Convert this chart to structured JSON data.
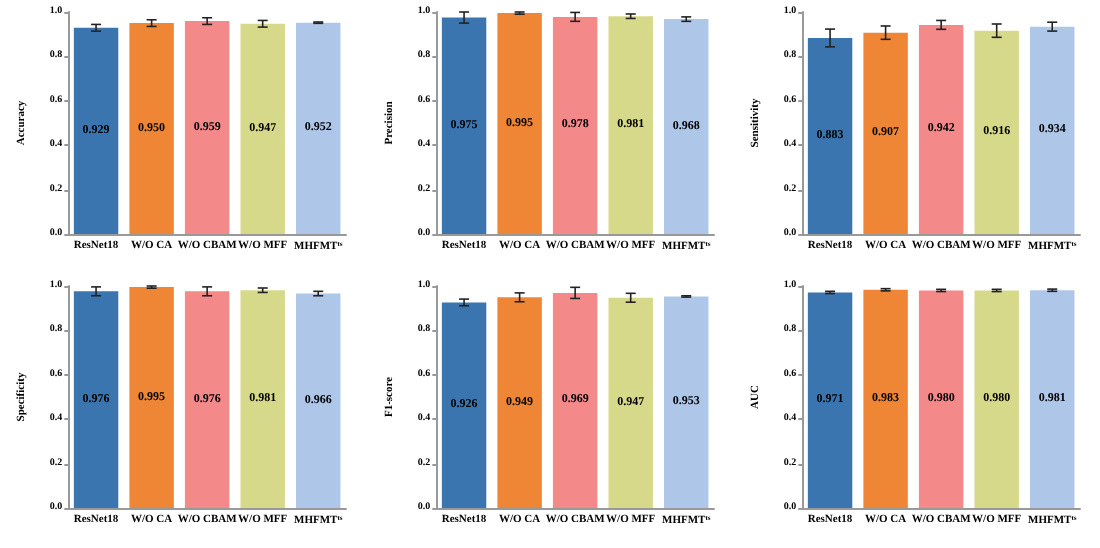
{
  "chart_data": [
    {
      "type": "bar",
      "ylabel": "Accuracy",
      "categories": [
        "ResNet18",
        "W/O CA",
        "W/O CBAM",
        "W/O MFF",
        "MHFMT$^{ts}$"
      ],
      "values": [
        0.929,
        0.95,
        0.959,
        0.947,
        0.952
      ],
      "errors": [
        0.015,
        0.015,
        0.015,
        0.015,
        0.003
      ],
      "colors": [
        "#3a75af",
        "#ef8636",
        "#f4898a",
        "#d6d88a",
        "#aec7e8"
      ],
      "ylim": [
        0,
        1
      ],
      "yticks": [
        {
          "value": 0,
          "label": "0.0"
        },
        {
          "value": 0.2,
          "label": "0.2"
        },
        {
          "value": 0.4,
          "label": "0.4"
        },
        {
          "value": 0.6,
          "label": "0.6"
        },
        {
          "value": 0.8,
          "label": "0.8"
        },
        {
          "value": 1,
          "label": "1.0"
        }
      ],
      "value_labels": [
        "0.929",
        "0.950",
        "0.959",
        "0.947",
        "0.952"
      ]
    },
    {
      "type": "bar",
      "ylabel": "Precision",
      "categories": [
        "ResNet18",
        "W/O CA",
        "W/O CBAM",
        "W/O MFF",
        "MHFMT$^{ts}$"
      ],
      "values": [
        0.975,
        0.995,
        0.978,
        0.981,
        0.968
      ],
      "errors": [
        0.025,
        0.005,
        0.02,
        0.01,
        0.01
      ],
      "colors": [
        "#3a75af",
        "#ef8636",
        "#f4898a",
        "#d6d88a",
        "#aec7e8"
      ],
      "ylim": [
        0,
        1
      ],
      "yticks": [
        {
          "value": 0,
          "label": "0.0"
        },
        {
          "value": 0.2,
          "label": "0.2"
        },
        {
          "value": 0.4,
          "label": "0.4"
        },
        {
          "value": 0.6,
          "label": "0.6"
        },
        {
          "value": 0.8,
          "label": "0.8"
        },
        {
          "value": 1,
          "label": "1.0"
        }
      ],
      "data_labels": true
    },
    {
      "type": "bar",
      "ylabel": "Sensitivity",
      "categories": [
        "ResNet18",
        "W/O CA",
        "W/O CBAM",
        "W/O MFF",
        "MHFMT$^{ts}$"
      ],
      "values": [
        0.883,
        0.907,
        0.942,
        0.916,
        0.934
      ],
      "errors": [
        0.04,
        0.03,
        0.02,
        0.03,
        0.02
      ],
      "colors": [
        "#3a75af",
        "#ef8636",
        "#f4898a",
        "#d6d88a",
        "#aec7e8"
      ],
      "ylim": [
        0,
        1
      ],
      "yticks": [
        {
          "value": 0,
          "label": "0.0"
        },
        {
          "value": 0.2,
          "label": "0.2"
        },
        {
          "value": 0.4,
          "label": "0.4"
        },
        {
          "value": 0.6,
          "label": "0.6"
        },
        {
          "value": 0.8,
          "label": "0.8"
        },
        {
          "value": 1,
          "label": "1.0"
        }
      ],
      "data_labels": true
    },
    {
      "type": "bar",
      "ylabel": "Specificity",
      "categories": [
        "ResNet18",
        "W/O CA",
        "W/O CBAM",
        "W/O MFF",
        "MHFMT$^{ts}$"
      ],
      "values": [
        0.976,
        0.995,
        0.976,
        0.981,
        0.966
      ],
      "errors": [
        0.02,
        0.005,
        0.02,
        0.01,
        0.01
      ],
      "colors": [
        "#3a75af",
        "#ef8636",
        "#f4898a",
        "#d6d88a",
        "#aec7e8"
      ],
      "ylim": [
        0,
        1
      ],
      "yticks": [
        {
          "value": 0,
          "label": "0.0"
        },
        {
          "value": 0.2,
          "label": "0.2"
        },
        {
          "value": 0.4,
          "label": "0.4"
        },
        {
          "value": 0.6,
          "label": "0.6"
        },
        {
          "value": 0.8,
          "label": "0.8"
        },
        {
          "value": 1,
          "label": "1.0"
        }
      ],
      "data_labels": true
    },
    {
      "type": "bar",
      "ylabel": "F1-score",
      "categories": [
        "ResNet18",
        "W/O CA",
        "W/O CBAM",
        "W/O MFF",
        "MHFMT$^{ts}$"
      ],
      "values": [
        0.926,
        0.949,
        0.969,
        0.947,
        0.953
      ],
      "errors": [
        0.015,
        0.02,
        0.025,
        0.02,
        0.003
      ],
      "colors": [
        "#3a75af",
        "#ef8636",
        "#f4898a",
        "#d6d88a",
        "#aec7e8"
      ],
      "ylim": [
        0,
        1
      ],
      "yticks": [
        {
          "value": 0,
          "label": "0.0"
        },
        {
          "value": 0.2,
          "label": "0.2"
        },
        {
          "value": 0.4,
          "label": "0.4"
        },
        {
          "value": 0.6,
          "label": "0.6"
        },
        {
          "value": 0.8,
          "label": "0.8"
        },
        {
          "value": 1,
          "label": "1.0"
        }
      ],
      "data_labels": true
    },
    {
      "type": "bar",
      "ylabel": "AUC",
      "categories": [
        "ResNet18",
        "W/O CA",
        "W/O CBAM",
        "W/O MFF",
        "MHFMT$^{ts}$"
      ],
      "values": [
        0.971,
        0.983,
        0.98,
        0.98,
        0.981
      ],
      "errors": [
        0.005,
        0.005,
        0.005,
        0.005,
        0.005
      ],
      "colors": [
        "#3a75af",
        "#ef8636",
        "#f4898a",
        "#d6d88a",
        "#aec7e8"
      ],
      "ylim": [
        0,
        1
      ],
      "yticks": [
        {
          "value": 0,
          "label": "0.0"
        },
        {
          "value": 0.2,
          "label": "0.2"
        },
        {
          "value": 0.4,
          "label": "0.4"
        },
        {
          "value": 0.6,
          "label": "0.6"
        },
        {
          "value": 0.8,
          "label": "0.8"
        },
        {
          "value": 1,
          "label": "1.0"
        }
      ],
      "value_labels": [
        "0.971",
        "0.983",
        "0.980",
        "0.980",
        "0.981"
      ]
    }
  ]
}
